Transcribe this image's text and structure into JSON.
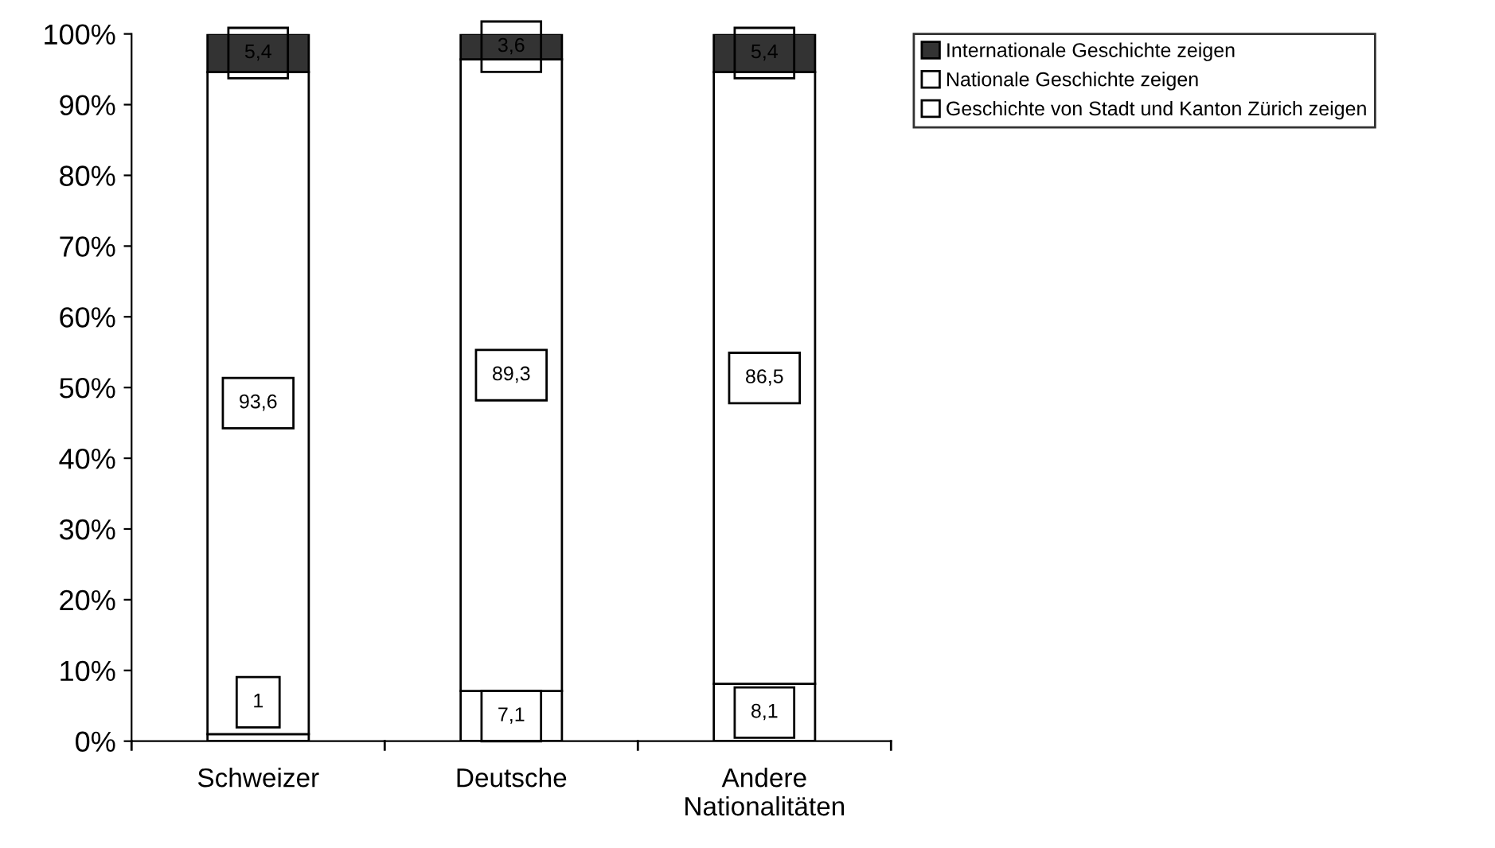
{
  "chart_data": {
    "type": "bar",
    "stacked": true,
    "categories": [
      "Schweizer",
      "Deutsche",
      "Andere\nNationalitäten"
    ],
    "series": [
      {
        "name": "Geschichte von Stadt und Kanton Zürich zeigen",
        "color": "#ffffff",
        "values": [
          1,
          7.1,
          8.1
        ],
        "value_labels": [
          "1",
          "7,1",
          "8,1"
        ]
      },
      {
        "name": "Nationale Geschichte zeigen",
        "color": "#ffffff",
        "values": [
          93.6,
          89.3,
          86.5
        ],
        "value_labels": [
          "93,6",
          "89,3",
          "86,5"
        ]
      },
      {
        "name": "Internationale Geschichte zeigen",
        "color": "#333333",
        "values": [
          5.4,
          3.6,
          5.4
        ],
        "value_labels": [
          "5,4",
          "3,6",
          "5,4"
        ]
      }
    ],
    "ylim": [
      0,
      100
    ],
    "yticks": [
      {
        "value": 0,
        "label": "0%"
      },
      {
        "value": 10,
        "label": "10%"
      },
      {
        "value": 20,
        "label": "20%"
      },
      {
        "value": 30,
        "label": "30%"
      },
      {
        "value": 40,
        "label": "40%"
      },
      {
        "value": 50,
        "label": "50%"
      },
      {
        "value": 60,
        "label": "60%"
      },
      {
        "value": 70,
        "label": "70%"
      },
      {
        "value": 80,
        "label": "80%"
      },
      {
        "value": 90,
        "label": "90%"
      },
      {
        "value": 100,
        "label": "100%"
      }
    ],
    "grid": false,
    "legend": "top right"
  }
}
